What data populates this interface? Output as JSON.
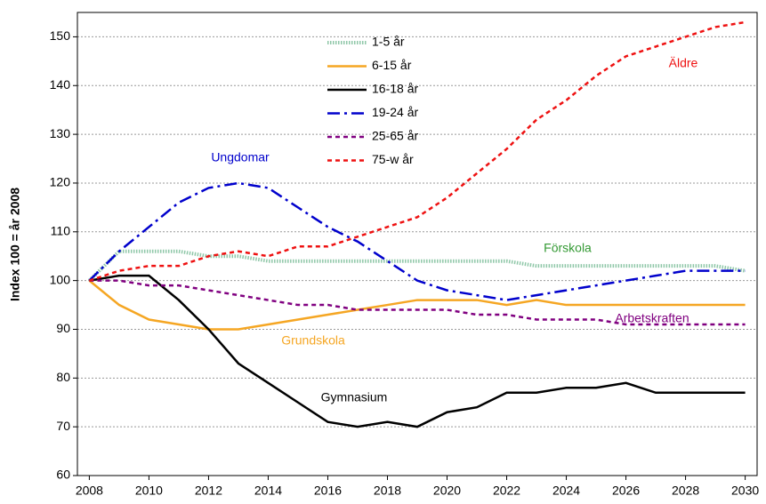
{
  "chart_data": {
    "type": "line",
    "y_label": "Index 100 = år 2008",
    "x": [
      2008,
      2009,
      2010,
      2011,
      2012,
      2013,
      2014,
      2015,
      2016,
      2017,
      2018,
      2019,
      2020,
      2021,
      2022,
      2023,
      2024,
      2025,
      2026,
      2027,
      2028,
      2029,
      2030
    ],
    "xlim": [
      2007.6,
      2030.4
    ],
    "xticks": [
      2008,
      2010,
      2012,
      2014,
      2016,
      2018,
      2020,
      2022,
      2024,
      2026,
      2028,
      2030
    ],
    "ylim": [
      60,
      155
    ],
    "yticks": [
      60,
      70,
      80,
      90,
      100,
      110,
      120,
      130,
      140,
      150
    ],
    "grid": true,
    "series": [
      {
        "name": "1-5 år",
        "color": "#8fc7a8",
        "dash": "dotted",
        "values": [
          100,
          106,
          106,
          106,
          105,
          105,
          104,
          104,
          104,
          104,
          104,
          104,
          104,
          104,
          104,
          103,
          103,
          103,
          103,
          103,
          103,
          103,
          102
        ]
      },
      {
        "name": "6-15 år",
        "color": "#f5a623",
        "dash": "solid",
        "values": [
          100,
          95,
          92,
          91,
          90,
          90,
          91,
          92,
          93,
          94,
          95,
          96,
          96,
          96,
          95,
          96,
          95,
          95,
          95,
          95,
          95,
          95,
          95
        ]
      },
      {
        "name": "16-18 år",
        "color": "#000000",
        "dash": "solid",
        "values": [
          100,
          101,
          101,
          96,
          90,
          83,
          79,
          75,
          71,
          70,
          71,
          70,
          73,
          74,
          77,
          77,
          78,
          78,
          79,
          77,
          77,
          77,
          77
        ]
      },
      {
        "name": "19-24 år",
        "color": "#0000cc",
        "dash": "dashdot",
        "values": [
          100,
          106,
          111,
          116,
          119,
          120,
          119,
          115,
          111,
          108,
          104,
          100,
          98,
          97,
          96,
          97,
          98,
          99,
          100,
          101,
          102,
          102,
          102
        ]
      },
      {
        "name": "25-65 år",
        "color": "#800080",
        "dash": "dashed",
        "values": [
          100,
          100,
          99,
          99,
          98,
          97,
          96,
          95,
          95,
          94,
          94,
          94,
          94,
          93,
          93,
          92,
          92,
          92,
          91,
          91,
          91,
          91,
          91
        ]
      },
      {
        "name": "75-w år",
        "color": "#ee1111",
        "dash": "dashed",
        "values": [
          100,
          102,
          103,
          103,
          105,
          106,
          105,
          107,
          107,
          109,
          111,
          113,
          117,
          122,
          127,
          133,
          137,
          142,
          146,
          148,
          150,
          152,
          153
        ]
      }
    ],
    "annotations": [
      {
        "text": "Ungdomar",
        "color": "#0000cc"
      },
      {
        "text": "Äldre",
        "color": "#ee1111"
      },
      {
        "text": "Förskola",
        "color": "#339933"
      },
      {
        "text": "Grundskola",
        "color": "#f5a623"
      },
      {
        "text": "Arbetskraften",
        "color": "#800080"
      },
      {
        "text": "Gymnasium",
        "color": "#000000"
      }
    ]
  }
}
